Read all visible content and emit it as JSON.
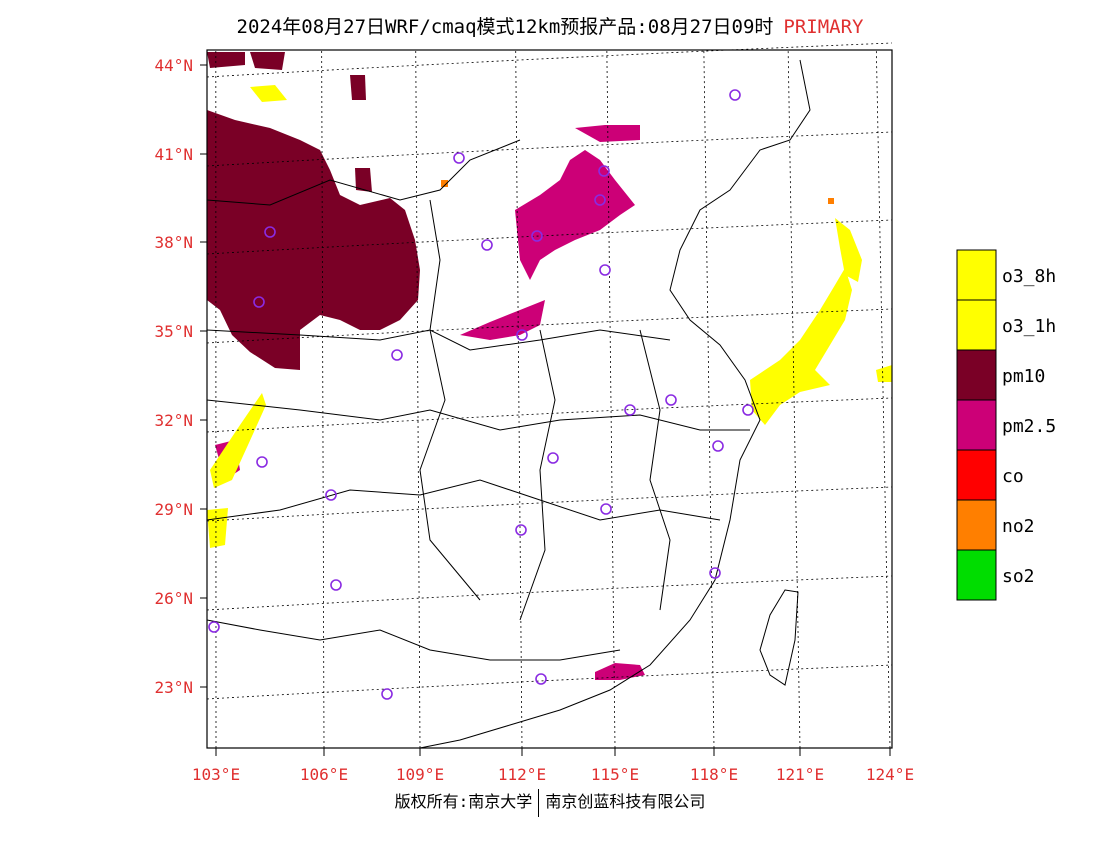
{
  "title": {
    "main": "2024年08月27日WRF/cmaq模式12km预报产品:08月27日09时",
    "tag": "PRIMARY"
  },
  "footer": {
    "left": "版权所有:南京大学",
    "right": "南京创蓝科技有限公司"
  },
  "lat_labels": [
    "44°N",
    "41°N",
    "38°N",
    "35°N",
    "32°N",
    "29°N",
    "26°N",
    "23°N"
  ],
  "lon_labels": [
    "103°E",
    "106°E",
    "109°E",
    "112°E",
    "115°E",
    "118°E",
    "121°E",
    "124°E"
  ],
  "legend": [
    {
      "label": "o3_8h",
      "color": "#ffff00"
    },
    {
      "label": "o3_1h",
      "color": "#ffff00"
    },
    {
      "label": "pm10",
      "color": "#7a0026"
    },
    {
      "label": "pm2.5",
      "color": "#cc0077"
    },
    {
      "label": "co",
      "color": "#ff0000"
    },
    {
      "label": "no2",
      "color": "#ff7f00"
    },
    {
      "label": "so2",
      "color": "#00dd00"
    }
  ],
  "colors": {
    "pm10": "#7a0026",
    "pm25": "#cc0077",
    "o3": "#ffff00",
    "no2": "#ff7f00",
    "station": "#8a2be2",
    "label": "#e03030"
  }
}
